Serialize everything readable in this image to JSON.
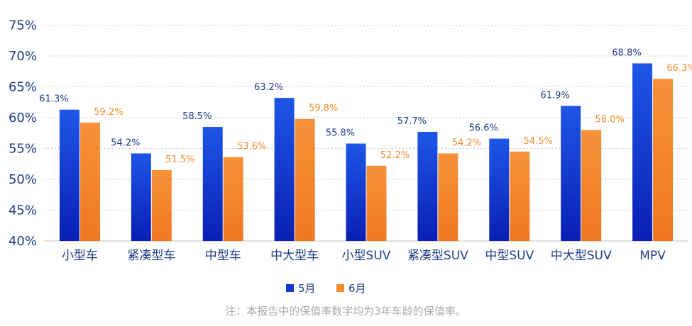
{
  "chart_data": {
    "type": "bar",
    "categories": [
      "小型车",
      "紧凑型车",
      "中型车",
      "中大型车",
      "小型SUV",
      "紧凑型SUV",
      "中型SUV",
      "中大型SUV",
      "MPV"
    ],
    "series": [
      {
        "name": "5月",
        "values": [
          61.3,
          54.2,
          58.5,
          63.2,
          55.8,
          57.7,
          56.6,
          61.9,
          68.8
        ],
        "labels": [
          "61.3%",
          "54.2%",
          "58.5%",
          "63.2%",
          "55.8%",
          "57.7%",
          "56.6%",
          "61.9%",
          "68.8%"
        ],
        "color_top": "#1e56e8",
        "color_bottom": "#0a1fb4"
      },
      {
        "name": "6月",
        "values": [
          59.2,
          51.5,
          53.6,
          59.8,
          52.2,
          54.2,
          54.5,
          58.0,
          66.3
        ],
        "labels": [
          "59.2%",
          "51.5%",
          "53.6%",
          "59.8%",
          "52.2%",
          "54.2%",
          "54.5%",
          "58.0%",
          "66.3%"
        ],
        "color_top": "#f6923a",
        "color_bottom": "#f07820"
      }
    ],
    "yticks": [
      40,
      45,
      50,
      55,
      60,
      65,
      70,
      75
    ],
    "ytick_labels": [
      "40%",
      "45%",
      "50%",
      "55%",
      "60%",
      "65%",
      "70%",
      "75%"
    ],
    "ylim": [
      40,
      75
    ],
    "grid": true,
    "legend": "bottom-center"
  },
  "note": "注：本报告中的保值率数字均为3年车龄的保值率。"
}
